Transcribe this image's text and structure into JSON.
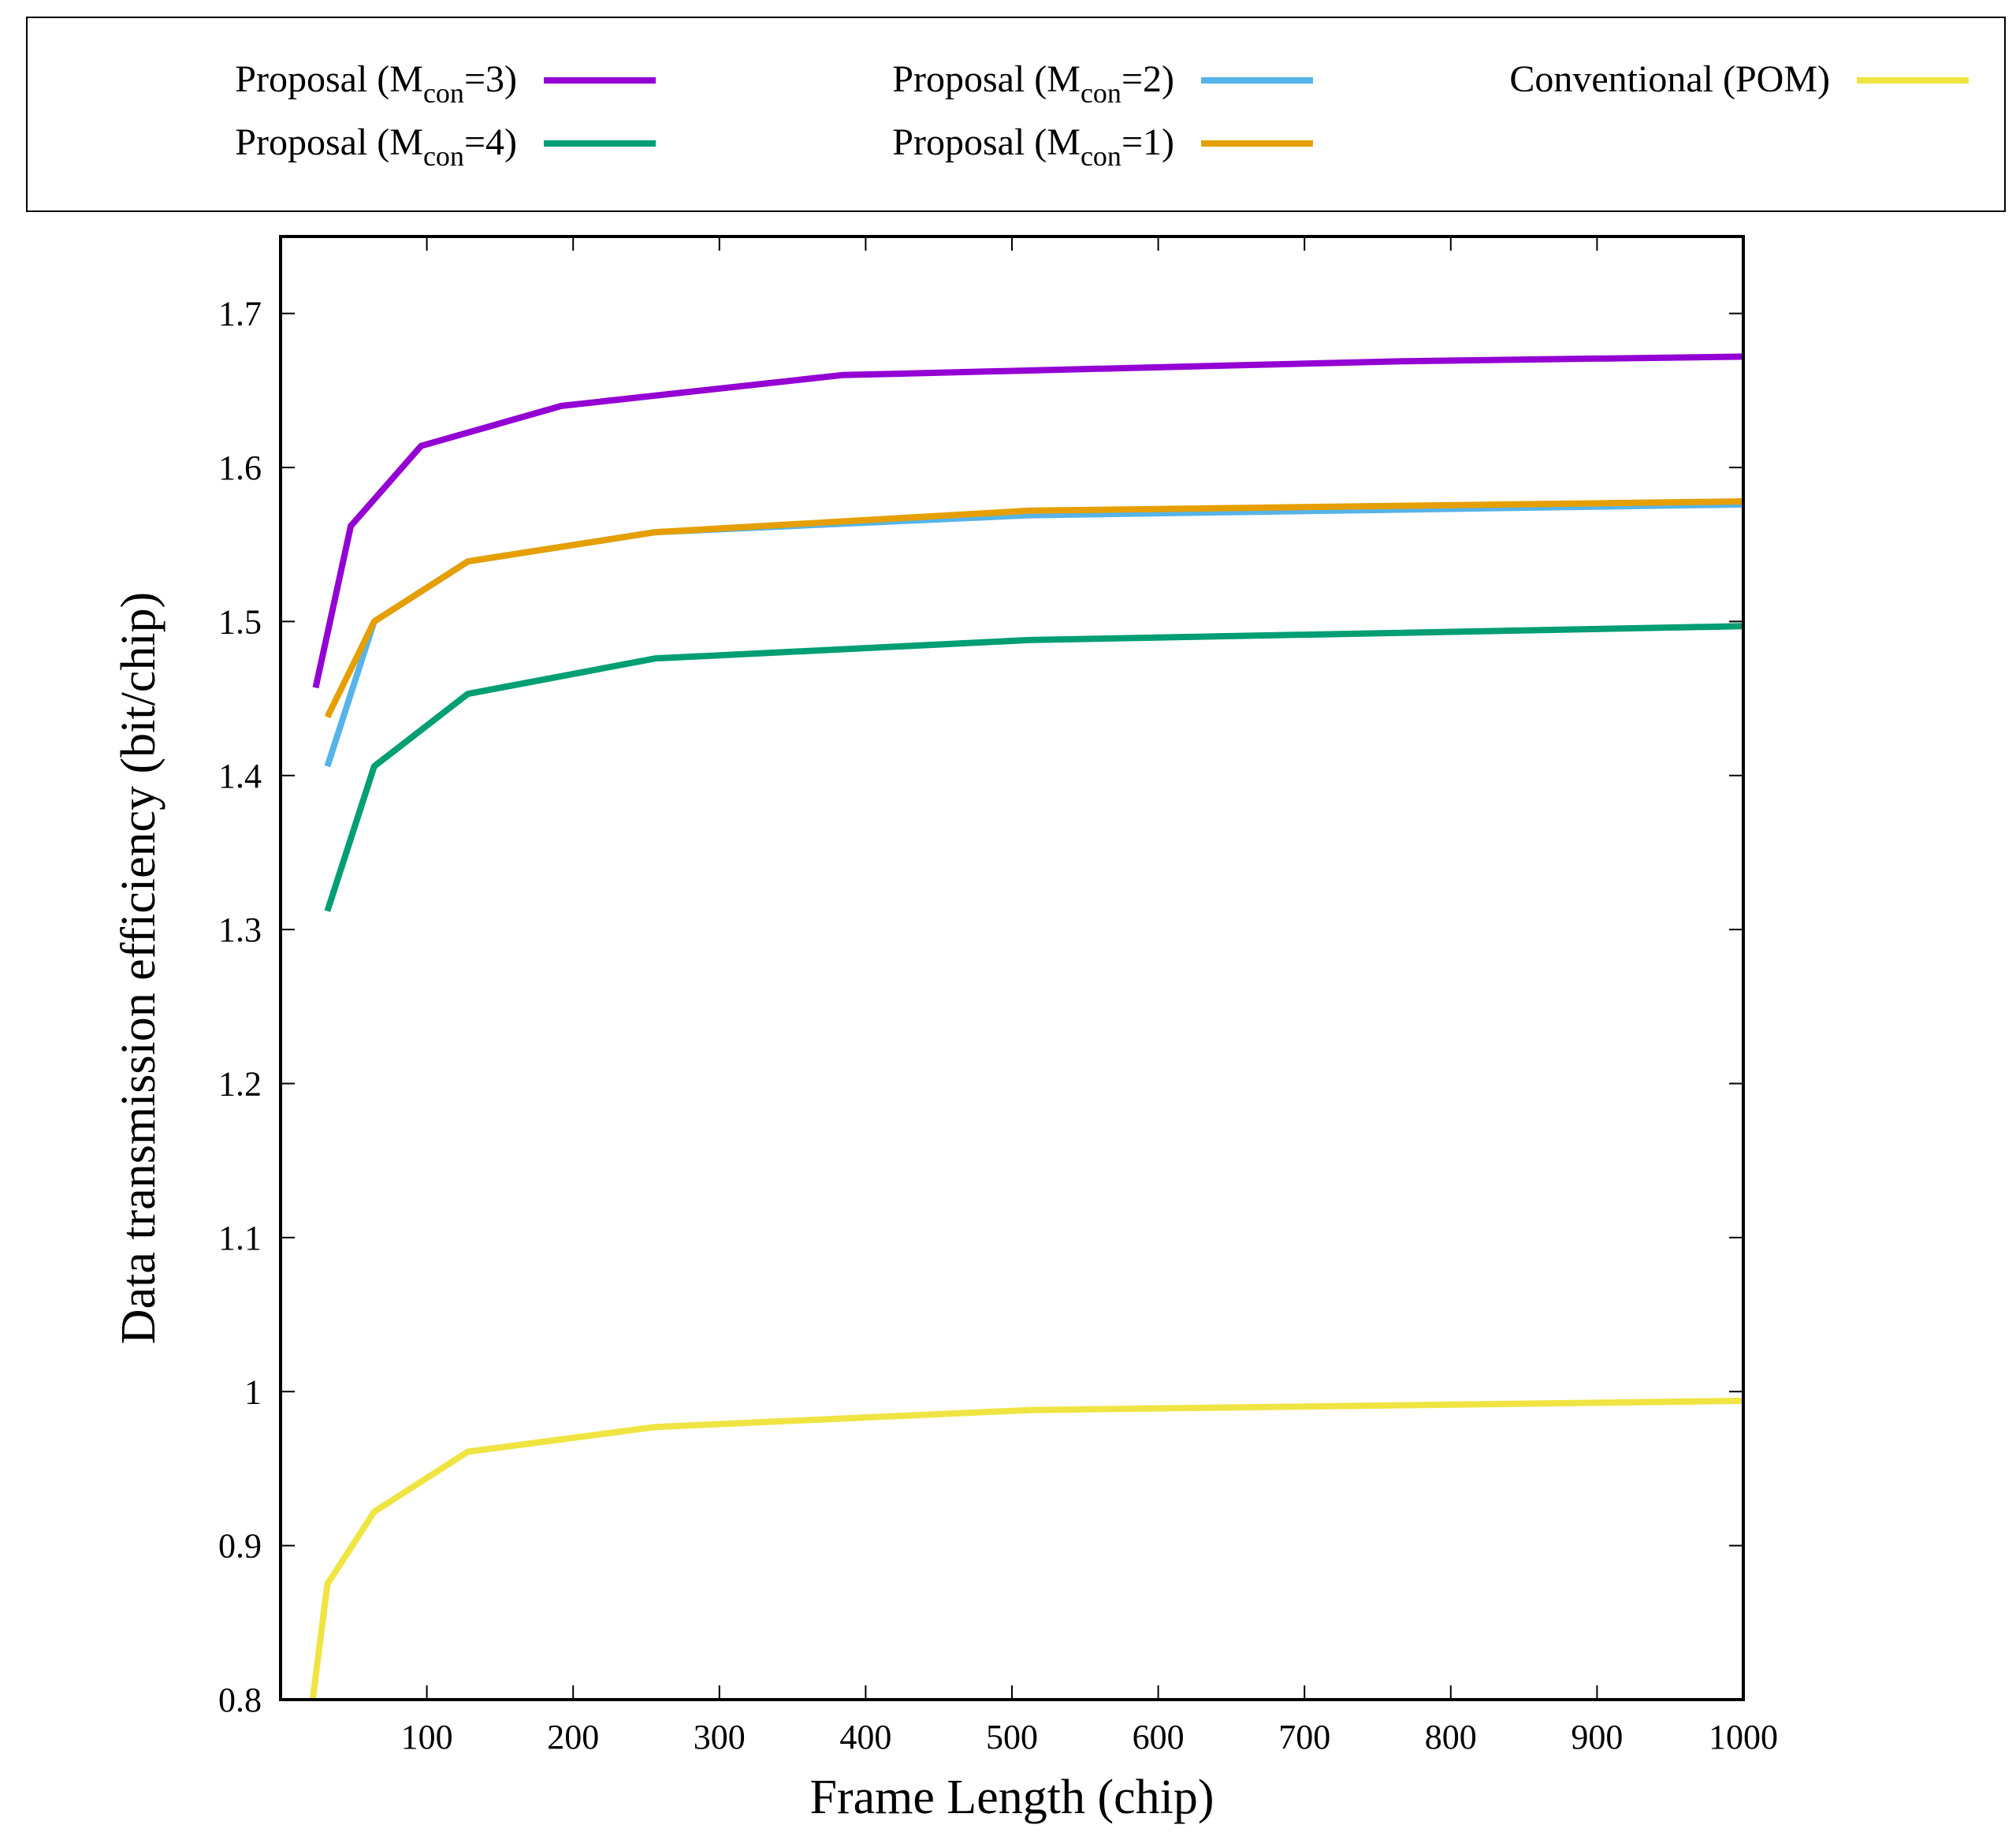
{
  "chart_data": {
    "type": "line",
    "title": "",
    "xlabel": "Frame Length (chip)",
    "ylabel": "Data transmission efficiency (bit/chip)",
    "xlim": [
      0,
      1000
    ],
    "ylim": [
      0.8,
      1.75
    ],
    "xticks": [
      100,
      200,
      300,
      400,
      500,
      600,
      700,
      800,
      900,
      1000
    ],
    "yticks": [
      0.8,
      0.9,
      1,
      1.1,
      1.2,
      1.3,
      1.4,
      1.5,
      1.6,
      1.7
    ],
    "legend_position": "top, outside plot",
    "series": [
      {
        "name": "Proposal (Mcon=3)",
        "label_main": "Proposal (M",
        "label_sub": "con",
        "label_tail": "=3)",
        "color": "#9400d3",
        "x": [
          24,
          48,
          96,
          192,
          384,
          768,
          1000
        ],
        "y": [
          1.457,
          1.562,
          1.614,
          1.64,
          1.66,
          1.669,
          1.672
        ]
      },
      {
        "name": "Proposal (Mcon=4)",
        "label_main": "Proposal (M",
        "label_sub": "con",
        "label_tail": "=4)",
        "color": "#009e73",
        "x": [
          32,
          64,
          128,
          256,
          512,
          1000
        ],
        "y": [
          1.312,
          1.406,
          1.453,
          1.476,
          1.488,
          1.497
        ]
      },
      {
        "name": "Proposal (Mcon=2)",
        "label_main": "Proposal (M",
        "label_sub": "con",
        "label_tail": "=2)",
        "color": "#56b4e9",
        "x": [
          32,
          64,
          128,
          256,
          512,
          1000
        ],
        "y": [
          1.406,
          1.5,
          1.539,
          1.558,
          1.569,
          1.576
        ]
      },
      {
        "name": "Proposal (Mcon=1)",
        "label_main": "Proposal (M",
        "label_sub": "con",
        "label_tail": "=1)",
        "color": "#e69f00",
        "x": [
          32,
          64,
          128,
          256,
          512,
          1000
        ],
        "y": [
          1.438,
          1.5,
          1.539,
          1.558,
          1.572,
          1.578
        ]
      },
      {
        "name": "Conventional (POM)",
        "label_main": "Conventional (POM)",
        "label_sub": "",
        "label_tail": "",
        "color": "#f0e442",
        "x": [
          22,
          32,
          64,
          128,
          256,
          512,
          1000
        ],
        "y": [
          0.8,
          0.875,
          0.922,
          0.961,
          0.977,
          0.988,
          0.994
        ]
      }
    ]
  }
}
